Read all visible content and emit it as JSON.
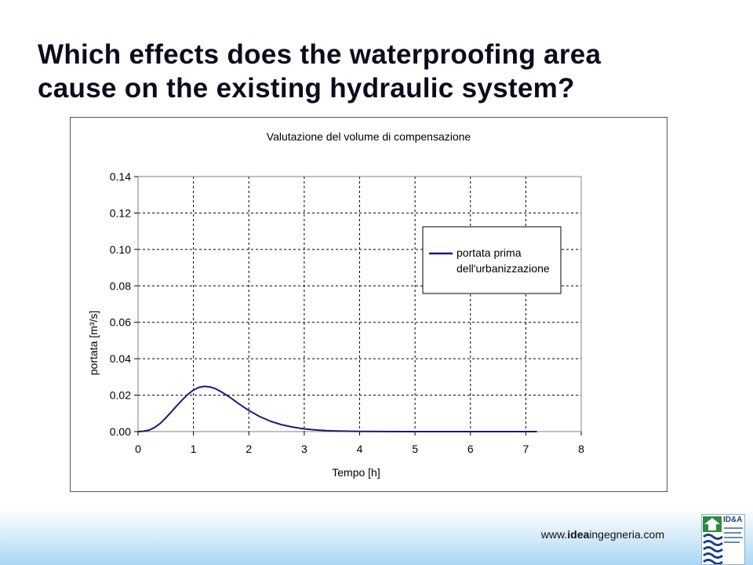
{
  "slide": {
    "title_line1": "Which effects does the waterproofing area",
    "title_line2": "cause on the existing hydraulic system?"
  },
  "footer": {
    "url_prefix": "www.",
    "url_bold": "idea",
    "url_suffix": "ingegneria.com",
    "logo_text": "ID&A"
  },
  "chart_data": {
    "type": "line",
    "title": "Valutazione del volume di compensazione",
    "xlabel": "Tempo [h]",
    "ylabel": "portata [m³/s]",
    "xlim": [
      0,
      8
    ],
    "ylim": [
      0,
      0.14
    ],
    "xticks": [
      "0",
      "1",
      "2",
      "3",
      "4",
      "5",
      "6",
      "7",
      "8"
    ],
    "yticks": [
      "0.00",
      "0.02",
      "0.04",
      "0.06",
      "0.08",
      "0.10",
      "0.12",
      "0.14"
    ],
    "grid": true,
    "legend_position": "right",
    "colors": {
      "series": "#1a1a7a",
      "plot_border": "#808080",
      "grid": "#000000"
    },
    "series": [
      {
        "name": "portata prima dell'urbanizzazione",
        "x": [
          0,
          0.1,
          0.2,
          0.3,
          0.4,
          0.5,
          0.6,
          0.7,
          0.8,
          0.9,
          1.0,
          1.1,
          1.2,
          1.3,
          1.4,
          1.5,
          1.6,
          1.7,
          1.8,
          1.9,
          2.0,
          2.2,
          2.4,
          2.6,
          2.8,
          3.0,
          3.2,
          3.4,
          3.6,
          4.0,
          5.0,
          6.0,
          7.0,
          7.2
        ],
        "y": [
          0,
          0.0002,
          0.0008,
          0.0023,
          0.0045,
          0.0075,
          0.0108,
          0.0142,
          0.0175,
          0.0205,
          0.0228,
          0.0243,
          0.0248,
          0.0245,
          0.0235,
          0.0219,
          0.02,
          0.0179,
          0.0157,
          0.0136,
          0.0116,
          0.0082,
          0.0056,
          0.0037,
          0.0024,
          0.0015,
          0.0009,
          0.0005,
          0.0003,
          0.0001,
          0,
          0,
          0,
          0
        ]
      }
    ]
  }
}
